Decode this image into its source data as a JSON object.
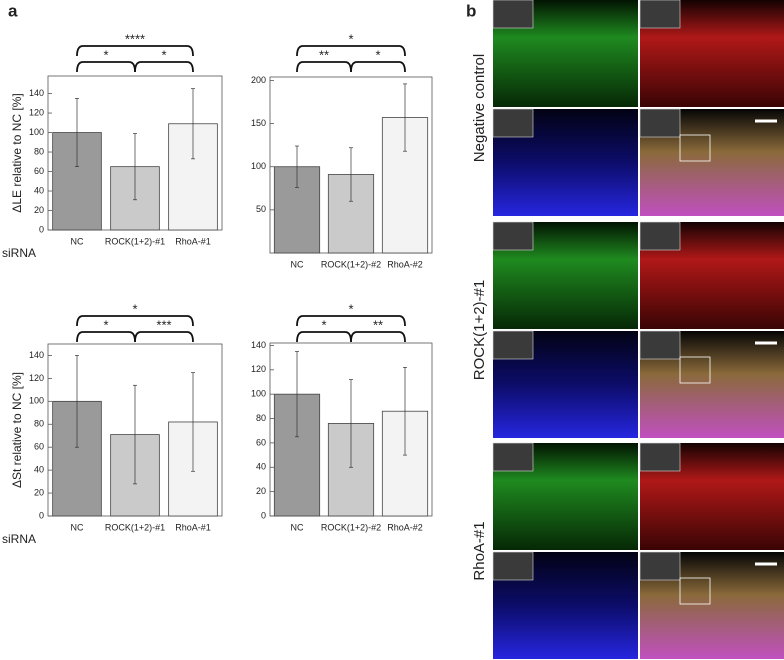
{
  "panels": {
    "a": "a",
    "b": "b"
  },
  "chart_data": [
    {
      "type": "bar",
      "ylabel": "ΔLE relative to NC [%]",
      "xlabel": "siRNA",
      "categories": [
        "NC",
        "ROCK(1+2)-#1",
        "RhoA-#1"
      ],
      "values": [
        100,
        65,
        109
      ],
      "errors": [
        35,
        34,
        36
      ],
      "colors": [
        "#9a9a9a",
        "#cacaca",
        "#f3f3f3"
      ],
      "ylim": [
        0,
        158
      ],
      "yticks": [
        0,
        20,
        40,
        60,
        80,
        100,
        120,
        140
      ],
      "significance": [
        "****",
        "*",
        "*"
      ]
    },
    {
      "type": "bar",
      "categories": [
        "NC",
        "ROCK(1+2)-#2",
        "RhoA-#2"
      ],
      "values": [
        100,
        91,
        157
      ],
      "errors": [
        24,
        31,
        39
      ],
      "colors": [
        "#9a9a9a",
        "#cacaca",
        "#f3f3f3"
      ],
      "ylim": [
        0,
        204
      ],
      "yticks": [
        50,
        100,
        150,
        200
      ],
      "significance": [
        "*",
        "**",
        "*"
      ]
    },
    {
      "type": "bar",
      "ylabel": "ΔSt relative to NC [%]",
      "xlabel": "siRNA",
      "categories": [
        "NC",
        "ROCK(1+2)-#1",
        "RhoA-#1"
      ],
      "values": [
        100,
        71,
        82
      ],
      "errors": [
        40,
        43,
        43
      ],
      "colors": [
        "#9a9a9a",
        "#cacaca",
        "#f3f3f3"
      ],
      "ylim": [
        0,
        150
      ],
      "yticks": [
        0,
        20,
        40,
        60,
        80,
        100,
        120,
        140
      ],
      "significance": [
        "*",
        "*",
        "***"
      ]
    },
    {
      "type": "bar",
      "categories": [
        "NC",
        "ROCK(1+2)-#2",
        "RhoA-#2"
      ],
      "values": [
        100,
        76,
        86
      ],
      "errors": [
        35,
        36,
        36
      ],
      "colors": [
        "#9a9a9a",
        "#cacaca",
        "#f3f3f3"
      ],
      "ylim": [
        0,
        142
      ],
      "yticks": [
        0,
        20,
        40,
        60,
        80,
        100,
        120,
        140
      ],
      "significance": [
        "*",
        "*",
        "**"
      ]
    }
  ],
  "microscopy": {
    "rows": [
      "Negative control",
      "ROCK(1+2)-#1",
      "RhoA-#1"
    ]
  }
}
